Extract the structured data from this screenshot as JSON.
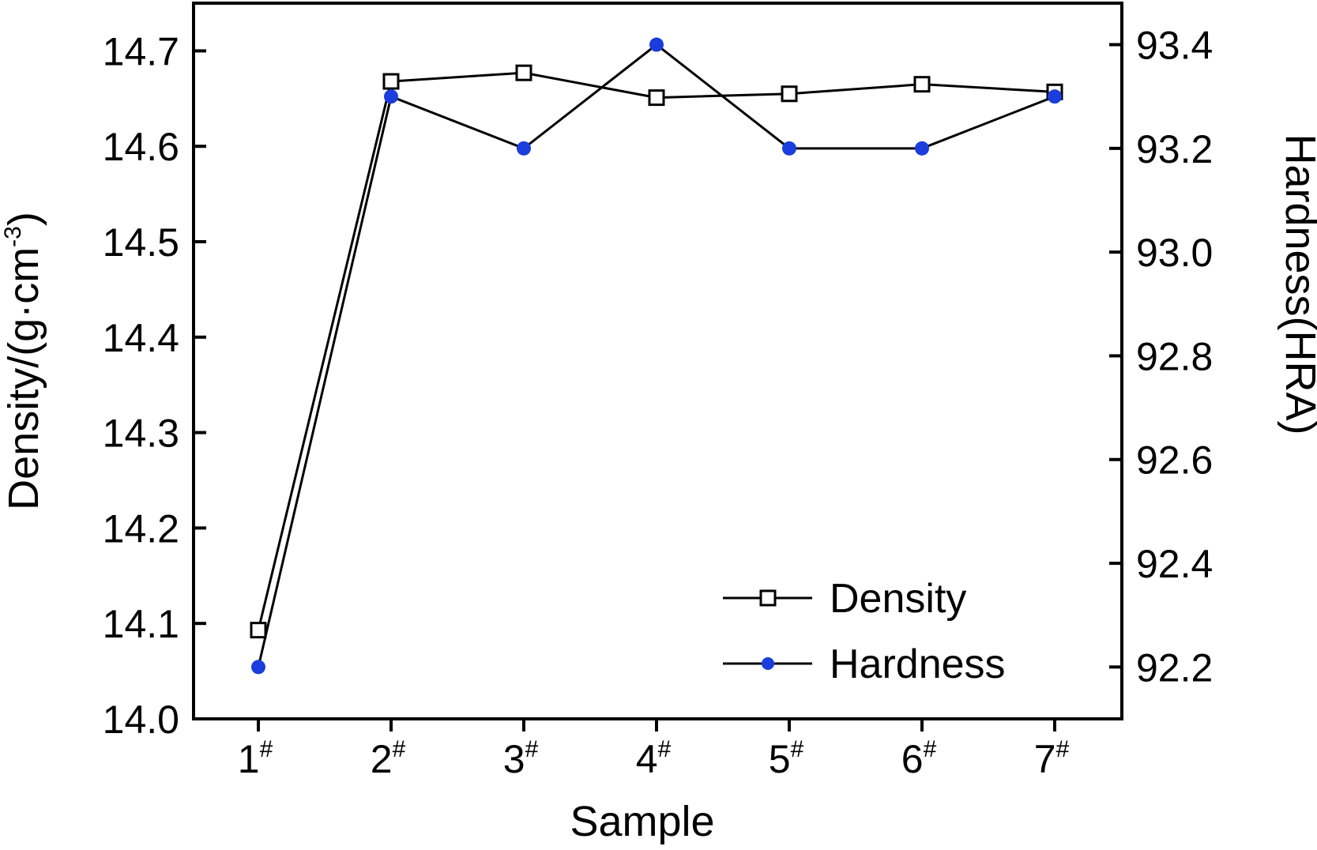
{
  "chart_data": {
    "type": "line",
    "xlabel": "Sample",
    "ylabel_left": "Density/(g·cm",
    "ylabel_left_sup": "-3",
    "ylabel_left_close": ")",
    "ylabel_right": "Hardness(HRA)",
    "categories": [
      {
        "num": "1",
        "sup": "#"
      },
      {
        "num": "2",
        "sup": "#"
      },
      {
        "num": "3",
        "sup": "#"
      },
      {
        "num": "4",
        "sup": "#"
      },
      {
        "num": "5",
        "sup": "#"
      },
      {
        "num": "6",
        "sup": "#"
      },
      {
        "num": "7",
        "sup": "#"
      }
    ],
    "ylim_left": [
      14.0,
      14.75
    ],
    "ylim_right": [
      92.1,
      93.48
    ],
    "yticks_left": [
      "14.0",
      "14.1",
      "14.2",
      "14.3",
      "14.4",
      "14.5",
      "14.6",
      "14.7"
    ],
    "yticks_right": [
      "92.2",
      "92.4",
      "92.6",
      "92.8",
      "93.0",
      "93.2",
      "93.4"
    ],
    "series": [
      {
        "name": "Density",
        "axis": "left",
        "marker": "open-square",
        "color": "#000000",
        "values": [
          14.093,
          14.668,
          14.677,
          14.651,
          14.655,
          14.665,
          14.657
        ]
      },
      {
        "name": "Hardness",
        "axis": "right",
        "marker": "filled-circle",
        "color": "#1a3ddb",
        "values": [
          92.2,
          93.3,
          93.2,
          93.4,
          93.2,
          93.2,
          93.3
        ]
      }
    ],
    "legend": {
      "position": "bottom-right"
    },
    "grid": false
  }
}
